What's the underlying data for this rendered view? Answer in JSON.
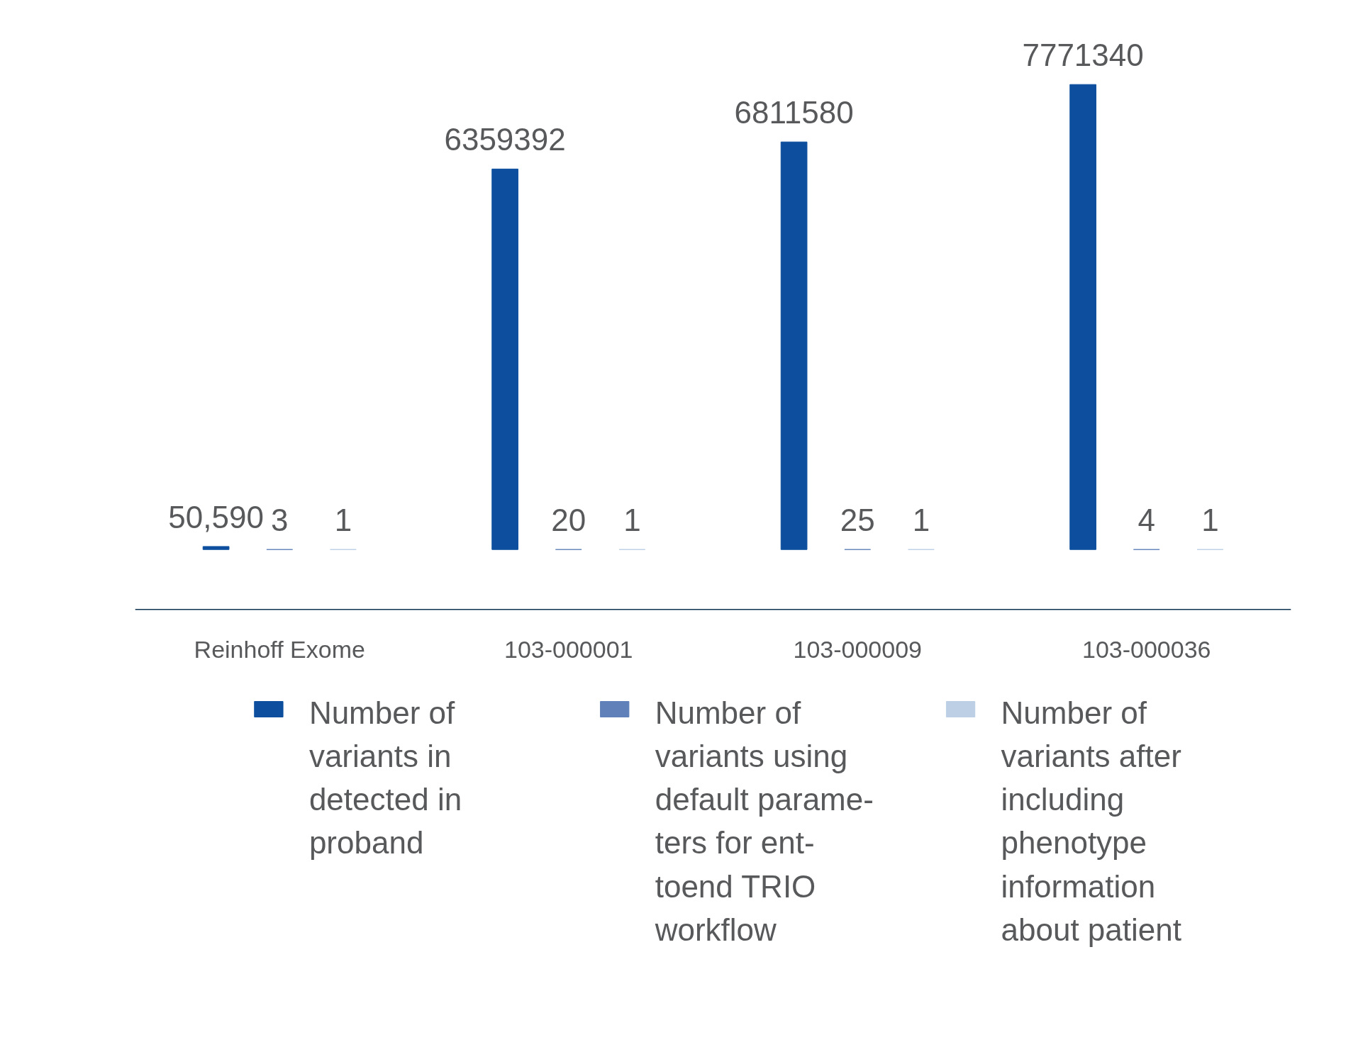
{
  "chart_data": {
    "type": "bar",
    "categories": [
      "Reinhoff Exome",
      "103-000001",
      "103-000009",
      "103-000036"
    ],
    "series": [
      {
        "name": "Number of variants in detected in proband",
        "color": "#0d4f9e",
        "values": [
          50590,
          6359392,
          6811580,
          7771340
        ],
        "value_labels": [
          "50,590",
          "6359392",
          "6811580",
          "7771340"
        ]
      },
      {
        "name": "Number of variants using default parame-ters for ent-toend TRIO workflow",
        "color": "#5f80b9",
        "values": [
          3,
          20,
          25,
          4
        ],
        "value_labels": [
          "3",
          "20",
          "25",
          "4"
        ]
      },
      {
        "name": "Number of variants after including phenotype information about patient",
        "color": "#bccfe5",
        "values": [
          1,
          1,
          1,
          1
        ],
        "value_labels": [
          "1",
          "1",
          "1",
          "1"
        ]
      }
    ],
    "legend": "bottom",
    "grid": false
  }
}
